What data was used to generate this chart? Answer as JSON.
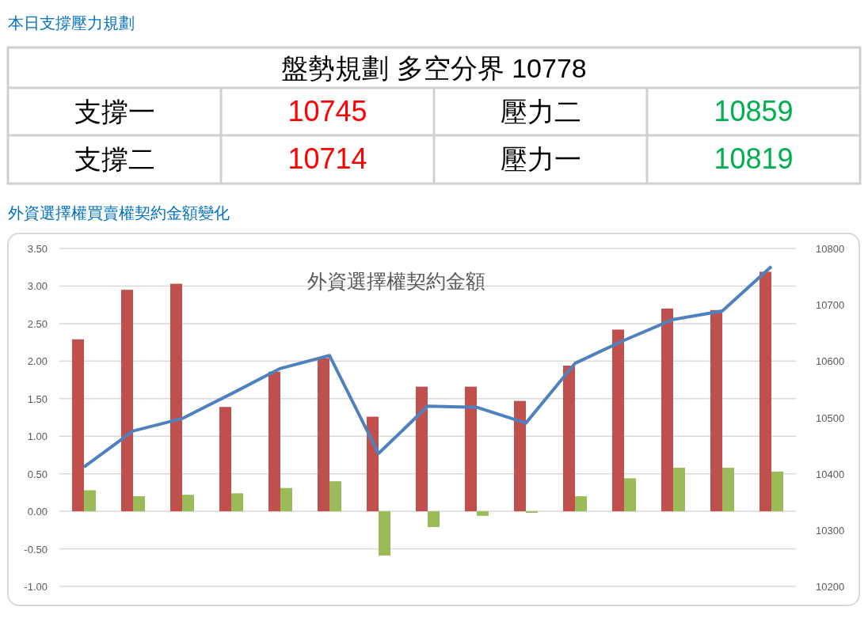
{
  "chart_data": [
    {
      "type": "other",
      "title": "本日支撐壓力規劃",
      "subtitle": "盤勢規劃 多空分界 10778",
      "categories": [
        "支撐一",
        "壓力二",
        "支撐二",
        "壓力一"
      ],
      "values": [
        10745,
        10859,
        10714,
        10819
      ],
      "colors": [
        "#ff0000",
        "#00b050",
        "#ff0000",
        "#00b050"
      ],
      "data_labels": true
    },
    {
      "type": "bar",
      "title": "外資選擇權買賣權契約金額變化",
      "subtitle": "外資選擇權契約金額",
      "categories": [
        null,
        null,
        null,
        null,
        null,
        null,
        null,
        null,
        null,
        null,
        null,
        null,
        null,
        null,
        null
      ],
      "series": [
        {
          "type": "bar",
          "color": "#c0504d",
          "values": [
            2.29,
            2.95,
            3.03,
            1.39,
            1.86,
            2.04,
            1.26,
            1.66,
            1.66,
            1.47,
            1.94,
            2.42,
            2.7,
            2.68,
            3.19
          ]
        },
        {
          "type": "bar",
          "color": "#9bbb59",
          "values": [
            0.28,
            0.2,
            0.22,
            0.24,
            0.31,
            0.4,
            -0.59,
            -0.21,
            -0.06,
            -0.02,
            0.2,
            0.44,
            0.58,
            0.58,
            0.53
          ]
        },
        {
          "type": "line",
          "axis": "y2",
          "color": "#4f81bd",
          "values": [
            10412,
            10476,
            10498,
            10542,
            10587,
            10610,
            10436,
            10520,
            10518,
            10490,
            10596,
            10637,
            10674,
            10689,
            10768
          ]
        }
      ],
      "ylim": [
        -1,
        3.5
      ],
      "yticks": [
        {
          "value": -1,
          "label": "-1.00"
        },
        {
          "value": -0.5,
          "label": "-0.50"
        },
        {
          "value": 0,
          "label": "0.00"
        },
        {
          "value": 0.5,
          "label": "0.50"
        },
        {
          "value": 1,
          "label": "1.00"
        },
        {
          "value": 1.5,
          "label": "1.50"
        },
        {
          "value": 2,
          "label": "2.00"
        },
        {
          "value": 2.5,
          "label": "2.50"
        },
        {
          "value": 3,
          "label": "3.00"
        },
        {
          "value": 3.5,
          "label": "3.50"
        }
      ],
      "y2lim": [
        10200,
        10800
      ],
      "y2ticks": [
        10200,
        10300,
        10400,
        10500,
        10600,
        10700,
        10800
      ],
      "grid": "y",
      "marker": "none",
      "line_style": "solid"
    }
  ]
}
